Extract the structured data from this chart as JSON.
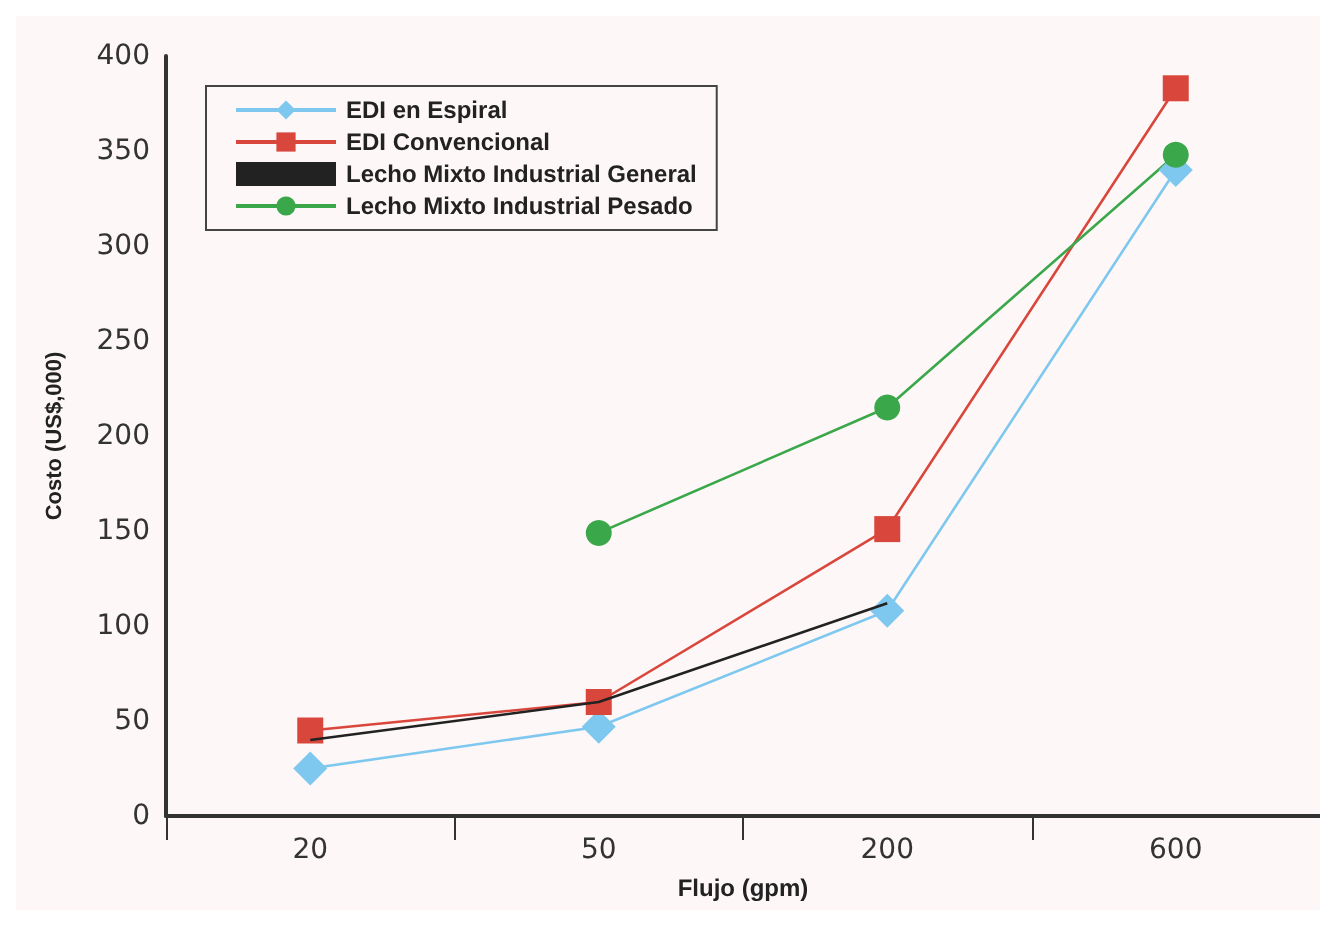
{
  "chart_data": {
    "type": "line",
    "xlabel": "Flujo (gpm)",
    "ylabel": "Costo (US$,000)",
    "categories": [
      "20",
      "50",
      "200",
      "600"
    ],
    "series": [
      {
        "name": "EDI en Espiral",
        "color": "#7ec8ef",
        "marker": "diamond",
        "values": [
          25,
          47,
          108,
          340
        ]
      },
      {
        "name": "EDI Convencional",
        "color": "#d9473c",
        "marker": "square",
        "values": [
          45,
          60,
          151,
          383
        ]
      },
      {
        "name": "Lecho Mixto Industrial General",
        "color": "#222222",
        "marker": "none",
        "values": [
          40,
          60,
          112,
          null
        ]
      },
      {
        "name": "Lecho Mixto Industrial Pesado",
        "color": "#3aa84a",
        "marker": "circle",
        "values": [
          null,
          149,
          215,
          348
        ]
      }
    ],
    "ylim": [
      0,
      400
    ],
    "yticks": [
      0,
      50,
      100,
      150,
      200,
      250,
      300,
      350,
      400
    ],
    "grid": false,
    "legend": "top left"
  }
}
